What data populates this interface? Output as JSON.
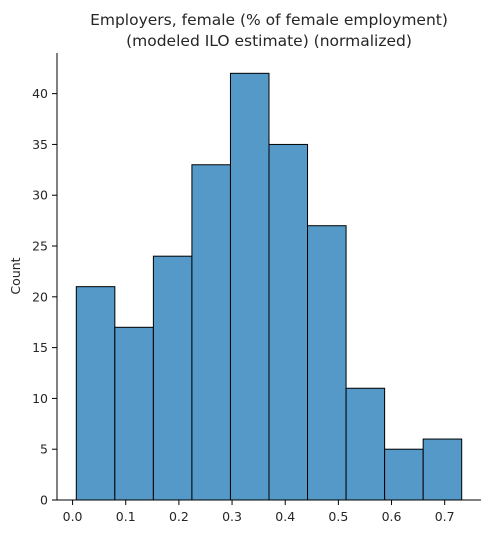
{
  "chart_data": {
    "type": "bar",
    "title_lines": [
      "Employers, female (% of female employment)",
      "(modeled ILO estimate) (normalized)"
    ],
    "xlabel": "",
    "ylabel": "Count",
    "bins": [
      {
        "x0": 0.007,
        "x1": 0.0795,
        "count": 21
      },
      {
        "x0": 0.0795,
        "x1": 0.152,
        "count": 17
      },
      {
        "x0": 0.152,
        "x1": 0.2245,
        "count": 24
      },
      {
        "x0": 0.2245,
        "x1": 0.297,
        "count": 33
      },
      {
        "x0": 0.297,
        "x1": 0.3695,
        "count": 42
      },
      {
        "x0": 0.3695,
        "x1": 0.442,
        "count": 35
      },
      {
        "x0": 0.442,
        "x1": 0.5145,
        "count": 27
      },
      {
        "x0": 0.5145,
        "x1": 0.587,
        "count": 11
      },
      {
        "x0": 0.587,
        "x1": 0.6595,
        "count": 5
      },
      {
        "x0": 0.6595,
        "x1": 0.732,
        "count": 6
      }
    ],
    "xlim": [
      -0.0293,
      0.7683
    ],
    "ylim": [
      0,
      44
    ],
    "xticks": [
      "0.0",
      "0.1",
      "0.2",
      "0.3",
      "0.4",
      "0.5",
      "0.6",
      "0.7"
    ],
    "xtick_values": [
      0.0,
      0.1,
      0.2,
      0.3,
      0.4,
      0.5,
      0.6,
      0.7
    ],
    "yticks": [
      "0",
      "5",
      "10",
      "15",
      "20",
      "25",
      "30",
      "35",
      "40"
    ],
    "ytick_values": [
      0,
      5,
      10,
      15,
      20,
      25,
      30,
      35,
      40
    ],
    "bar_color": "#5499c7",
    "edge_color": "#000000",
    "grid": false,
    "legend": "none"
  }
}
